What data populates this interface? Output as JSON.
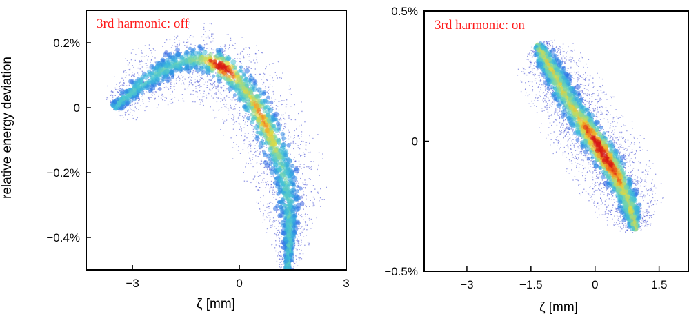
{
  "ylabel": "relative energy deviation",
  "chart_data": [
    {
      "type": "scatter",
      "annotation": "3rd harmonic: off",
      "xlabel": "ζ [mm]",
      "ylabel": "relative energy deviation",
      "xlim": [
        -4.3,
        3.0
      ],
      "ylim": [
        -0.5,
        0.3
      ],
      "xticks": [
        -3,
        0,
        3
      ],
      "xtick_labels": [
        "−3",
        "0",
        "3"
      ],
      "yticks": [
        0.2,
        0,
        -0.2,
        -0.4
      ],
      "ytick_labels": [
        "0.2%",
        "0",
        "−0.2%",
        "−0.4%"
      ],
      "grid": false,
      "color_scale": "density (blue low → red high)",
      "points": [
        {
          "x": -3.5,
          "y": 0.0
        },
        {
          "x": -3.0,
          "y": 0.05
        },
        {
          "x": -2.5,
          "y": 0.09
        },
        {
          "x": -2.0,
          "y": 0.125
        },
        {
          "x": -1.5,
          "y": 0.145
        },
        {
          "x": -1.2,
          "y": 0.15
        },
        {
          "x": -0.8,
          "y": 0.145
        },
        {
          "x": -0.4,
          "y": 0.12
        },
        {
          "x": 0.0,
          "y": 0.08
        },
        {
          "x": 0.4,
          "y": 0.02
        },
        {
          "x": 0.8,
          "y": -0.07
        },
        {
          "x": 1.1,
          "y": -0.15
        },
        {
          "x": 1.3,
          "y": -0.22
        },
        {
          "x": 1.4,
          "y": -0.32
        },
        {
          "x": 1.4,
          "y": -0.42
        },
        {
          "x": 1.35,
          "y": -0.5
        }
      ]
    },
    {
      "type": "scatter",
      "annotation": "3rd harmonic: on",
      "xlabel": "ζ [mm]",
      "xlim": [
        -4.0,
        2.2
      ],
      "ylim": [
        -0.5,
        0.5
      ],
      "xticks": [
        -3,
        -1.5,
        0,
        1.5
      ],
      "xtick_labels": [
        "−3",
        "−1.5",
        "0",
        "1.5"
      ],
      "yticks": [
        0.5,
        0,
        -0.5
      ],
      "ytick_labels": [
        "0.5%",
        "0",
        "−0.5%"
      ],
      "grid": false,
      "color_scale": "density (blue low → red high)",
      "points": [
        {
          "x": -1.35,
          "y": 0.37
        },
        {
          "x": -1.0,
          "y": 0.27
        },
        {
          "x": -0.6,
          "y": 0.15
        },
        {
          "x": -0.2,
          "y": 0.05
        },
        {
          "x": 0.2,
          "y": -0.05
        },
        {
          "x": 0.5,
          "y": -0.13
        },
        {
          "x": 0.8,
          "y": -0.24
        },
        {
          "x": 0.95,
          "y": -0.34
        }
      ]
    }
  ]
}
